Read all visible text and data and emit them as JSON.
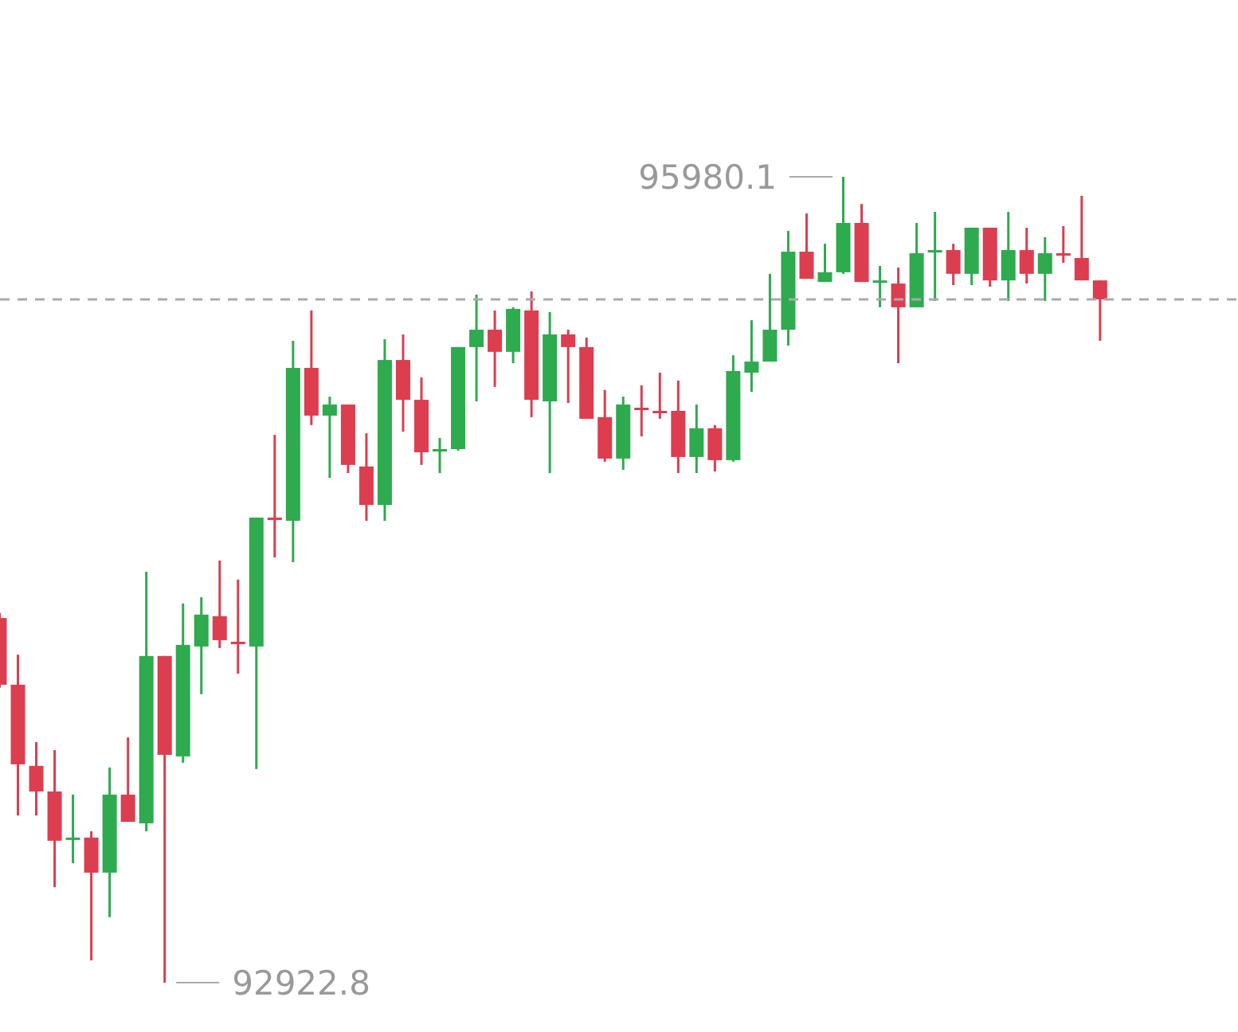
{
  "chart_data": {
    "type": "candlestick",
    "categories": [
      null,
      null,
      null,
      null,
      null,
      null,
      null,
      null,
      null,
      null,
      null,
      null,
      null,
      null,
      null,
      null,
      null,
      null,
      null,
      null,
      null,
      null,
      null,
      null,
      null,
      null,
      null,
      null,
      null,
      null,
      null,
      null,
      null,
      null,
      null,
      null,
      null,
      null,
      null,
      null,
      null,
      null,
      null,
      null,
      null,
      null,
      null,
      null,
      null,
      null,
      null,
      null,
      null,
      null,
      null,
      null,
      null,
      null,
      null,
      null,
      null
    ],
    "ohlc": [
      [
        94306,
        94325,
        94041,
        94053
      ],
      [
        94053,
        94167,
        93557,
        93751
      ],
      [
        93745,
        93835,
        93557,
        93648
      ],
      [
        93648,
        93805,
        93285,
        93461
      ],
      [
        93467,
        93636,
        93376,
        93473
      ],
      [
        93473,
        93497,
        93007,
        93340
      ],
      [
        93340,
        93739,
        93171,
        93636
      ],
      [
        93636,
        93853,
        93533,
        93533
      ],
      [
        93527,
        94482,
        93497,
        94162
      ],
      [
        94162,
        94162,
        92922.8,
        93787
      ],
      [
        93781,
        94361,
        93757,
        94204
      ],
      [
        94198,
        94385,
        94017,
        94319
      ],
      [
        94313,
        94524,
        94192,
        94222
      ],
      [
        94216,
        94452,
        94095,
        94210
      ],
      [
        94198,
        94687,
        93733,
        94687
      ],
      [
        94687,
        95001,
        94536,
        94681
      ],
      [
        94675,
        95358,
        94518,
        95255
      ],
      [
        95255,
        95473,
        95038,
        95074
      ],
      [
        95074,
        95146,
        94838,
        95116
      ],
      [
        95116,
        95116,
        94856,
        94887
      ],
      [
        94881,
        95007,
        94675,
        94735
      ],
      [
        94735,
        95364,
        94675,
        95285
      ],
      [
        95285,
        95382,
        95013,
        95134
      ],
      [
        95134,
        95219,
        94887,
        94935
      ],
      [
        94941,
        94989,
        94856,
        94947
      ],
      [
        94947,
        95334,
        94941,
        95334
      ],
      [
        95334,
        95533,
        95128,
        95400
      ],
      [
        95400,
        95473,
        95183,
        95316
      ],
      [
        95316,
        95485,
        95273,
        95479
      ],
      [
        95473,
        95545,
        95068,
        95134
      ],
      [
        95128,
        95467,
        94856,
        95382
      ],
      [
        95382,
        95400,
        95122,
        95334
      ],
      [
        95334,
        95370,
        95062,
        95062
      ],
      [
        95068,
        95171,
        94899,
        94911
      ],
      [
        94911,
        95146,
        94868,
        95116
      ],
      [
        95104,
        95189,
        94995,
        95098
      ],
      [
        95092,
        95237,
        95062,
        95086
      ],
      [
        95092,
        95207,
        94856,
        94917
      ],
      [
        94917,
        95116,
        94856,
        95026
      ],
      [
        95026,
        95038,
        94862,
        94905
      ],
      [
        94905,
        95303,
        94899,
        95243
      ],
      [
        95237,
        95436,
        95164,
        95279
      ],
      [
        95279,
        95612,
        95279,
        95400
      ],
      [
        95400,
        95775,
        95340,
        95696
      ],
      [
        95696,
        95841,
        95593,
        95593
      ],
      [
        95581,
        95726,
        95581,
        95618
      ],
      [
        95618,
        95980.1,
        95612,
        95805
      ],
      [
        95805,
        95877,
        95581,
        95581
      ],
      [
        95581,
        95642,
        95485,
        95587
      ],
      [
        95575,
        95636,
        95273,
        95485
      ],
      [
        95485,
        95805,
        95485,
        95690
      ],
      [
        95696,
        95847,
        95509,
        95702
      ],
      [
        95702,
        95726,
        95569,
        95612
      ],
      [
        95612,
        95787,
        95569,
        95787
      ],
      [
        95787,
        95787,
        95563,
        95587
      ],
      [
        95587,
        95847,
        95509,
        95702
      ],
      [
        95702,
        95787,
        95575,
        95612
      ],
      [
        95612,
        95751,
        95509,
        95690
      ],
      [
        95690,
        95793,
        95654,
        95684
      ],
      [
        95672,
        95908,
        95587,
        95587
      ],
      [
        95587,
        95587,
        95358,
        95515
      ]
    ],
    "colors": [
      "#dc3d4f",
      "#dc3d4f",
      "#dc3d4f",
      "#dc3d4f",
      "#2eaa4f",
      "#dc3d4f",
      "#2eaa4f",
      "#dc3d4f",
      "#2eaa4f",
      "#dc3d4f",
      "#2eaa4f",
      "#2eaa4f",
      "#dc3d4f",
      "#dc3d4f",
      "#2eaa4f",
      "#dc3d4f",
      "#2eaa4f",
      "#dc3d4f",
      "#2eaa4f",
      "#dc3d4f",
      "#dc3d4f",
      "#2eaa4f",
      "#dc3d4f",
      "#dc3d4f",
      "#2eaa4f",
      "#2eaa4f",
      "#2eaa4f",
      "#dc3d4f",
      "#2eaa4f",
      "#dc3d4f",
      "#2eaa4f",
      "#dc3d4f",
      "#dc3d4f",
      "#dc3d4f",
      "#2eaa4f",
      "#dc3d4f",
      "#dc3d4f",
      "#dc3d4f",
      "#2eaa4f",
      "#dc3d4f",
      "#2eaa4f",
      "#2eaa4f",
      "#2eaa4f",
      "#2eaa4f",
      "#dc3d4f",
      "#2eaa4f",
      "#2eaa4f",
      "#dc3d4f",
      "#2eaa4f",
      "#dc3d4f",
      "#2eaa4f",
      "#2eaa4f",
      "#dc3d4f",
      "#2eaa4f",
      "#dc3d4f",
      "#2eaa4f",
      "#dc3d4f",
      "#2eaa4f",
      "#dc3d4f",
      "#dc3d4f",
      "#dc3d4f"
    ],
    "annotations": [
      "95980.1",
      "92922.8"
    ],
    "ref_lines": [
      {
        "axis": "y",
        "value": 95515,
        "color": "#aaaaaa",
        "line_style": "dashed"
      }
    ]
  }
}
